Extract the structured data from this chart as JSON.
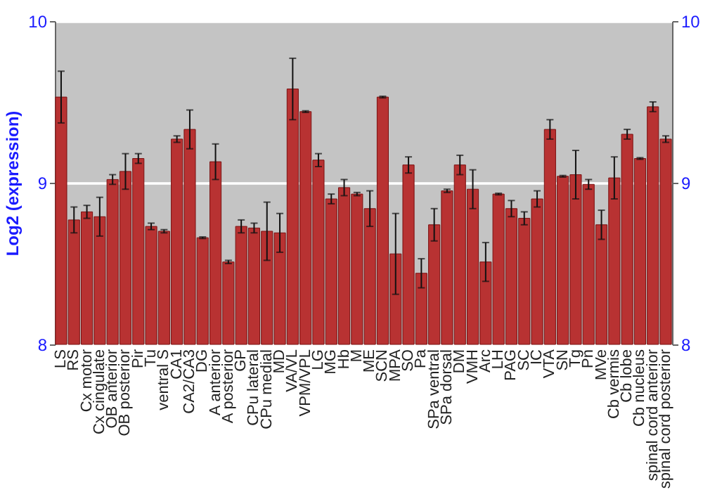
{
  "chart_data": {
    "type": "bar",
    "ylabel": "Log2 (expression)",
    "categories": [
      "LS",
      "RS",
      "Cx motor",
      "Cx cingulate",
      "OB anterior",
      "OB posterior",
      "Pir",
      "Tu",
      "ventral S",
      "CA1",
      "CA2/CA3",
      "DG",
      "A anterior",
      "A posterior",
      "GP",
      "CPu lateral",
      "CPu medial",
      "MD",
      "VA/VL",
      "VPM/VPL",
      "LG",
      "MG",
      "Hb",
      "M",
      "ME",
      "SCN",
      "MPA",
      "SO",
      "Pa",
      "SPa ventral",
      "SPa dorsal",
      "DM",
      "VMH",
      "Arc",
      "LH",
      "PAG",
      "SC",
      "IC",
      "VTA",
      "SN",
      "Tg",
      "Pn",
      "MVe",
      "Cb vermis",
      "Cb lobe",
      "Cb nucleus",
      "spinal cord anterior",
      "spinal cord posterior"
    ],
    "series": [
      {
        "color": "#b83232",
        "values": [
          9.53,
          8.77,
          8.82,
          8.79,
          9.02,
          9.07,
          9.15,
          8.73,
          8.7,
          9.27,
          9.33,
          8.66,
          9.13,
          8.51,
          8.73,
          8.72,
          8.7,
          8.69,
          9.58,
          9.44,
          9.14,
          8.9,
          8.97,
          8.93,
          8.84,
          9.53,
          8.56,
          9.11,
          8.44,
          8.74,
          8.95,
          9.11,
          8.96,
          8.51,
          8.93,
          8.84,
          8.78,
          8.9,
          9.33,
          9.04,
          9.05,
          8.99,
          8.74,
          9.03,
          9.3,
          9.15,
          9.47,
          9.27
        ],
        "errors": [
          0.16,
          0.08,
          0.04,
          0.12,
          0.03,
          0.11,
          0.03,
          0.02,
          0.01,
          0.02,
          0.12,
          0.005,
          0.11,
          0.01,
          0.04,
          0.03,
          0.18,
          0.12,
          0.19,
          0.005,
          0.04,
          0.03,
          0.05,
          0.01,
          0.11,
          0.005,
          0.25,
          0.05,
          0.09,
          0.1,
          0.01,
          0.06,
          0.12,
          0.12,
          0.005,
          0.05,
          0.04,
          0.05,
          0.06,
          0.005,
          0.15,
          0.03,
          0.09,
          0.13,
          0.03,
          0.005,
          0.03,
          0.02
        ]
      }
    ],
    "ylim": [
      8,
      10
    ],
    "yticks": [
      8,
      9,
      10
    ],
    "y2lim": [
      8,
      10
    ],
    "y2ticks": [
      8,
      9,
      10
    ],
    "grid": "y"
  }
}
